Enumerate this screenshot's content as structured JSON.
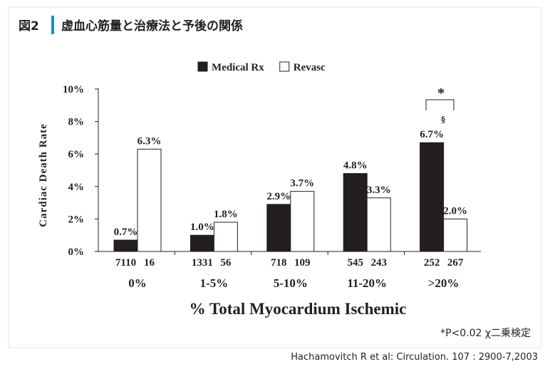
{
  "chart_data": {
    "type": "bar",
    "figure_label": "図2",
    "title": "虚血心筋量と治療法と予後の関係",
    "categories": [
      "0%",
      "1-5%",
      "5-10%",
      "11-20%",
      ">20%"
    ],
    "series": [
      {
        "name": "Medical Rx",
        "color": "#231f20",
        "values": [
          0.7,
          1.0,
          2.9,
          4.8,
          6.7
        ],
        "value_labels": [
          "0.7%",
          "1.0%",
          "2.9%",
          "4.8%",
          "6.7%"
        ],
        "n": [
          7110,
          1331,
          718,
          545,
          252
        ]
      },
      {
        "name": "Revasc",
        "color": "#ffffff",
        "values": [
          6.3,
          1.8,
          3.7,
          3.3,
          2.0
        ],
        "value_labels": [
          "6.3%",
          "1.8%",
          "3.7%",
          "3.3%",
          "2.0%"
        ],
        "n": [
          16,
          56,
          109,
          243,
          267
        ]
      }
    ],
    "ylim": [
      0,
      10
    ],
    "yticks": [
      {
        "value": 0,
        "label": "0%"
      },
      {
        "value": 2,
        "label": "2%"
      },
      {
        "value": 4,
        "label": "4%"
      },
      {
        "value": 6,
        "label": "6%"
      },
      {
        "value": 8,
        "label": "8%"
      },
      {
        "value": 10,
        "label": "10%"
      }
    ],
    "ylabel": "Cardiac Death Rate",
    "xlabel": "% Total Myocardium Ischemic",
    "significance": "*",
    "significance_mark": "§",
    "note": "*P<0.02  χ二乗検定",
    "source": "Hachamovitch R et al: Circulation. 107 : 2900-7,2003",
    "legend": "top"
  }
}
